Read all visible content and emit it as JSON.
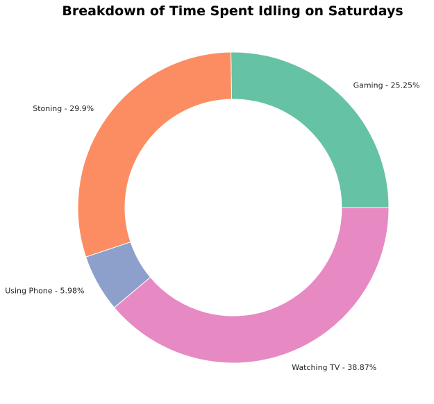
{
  "chart_data": {
    "type": "pie",
    "variant": "donut",
    "title": "Breakdown of Time Spent Idling on Saturdays",
    "slices": [
      {
        "label": "Gaming - 25.25%",
        "category": "Gaming",
        "value": 25.25,
        "color": "#66c2a5"
      },
      {
        "label": "Stoning - 29.9%",
        "category": "Stoning",
        "value": 29.9,
        "color": "#fc8d62"
      },
      {
        "label": "Using Phone - 5.98%",
        "category": "Using Phone",
        "value": 5.98,
        "color": "#8da0cb"
      },
      {
        "label": "Watching TV - 38.87%",
        "category": "Watching TV",
        "value": 38.87,
        "color": "#e78ac3"
      }
    ],
    "start_angle_deg": 0,
    "direction": "counterclockwise",
    "legend": "none"
  }
}
